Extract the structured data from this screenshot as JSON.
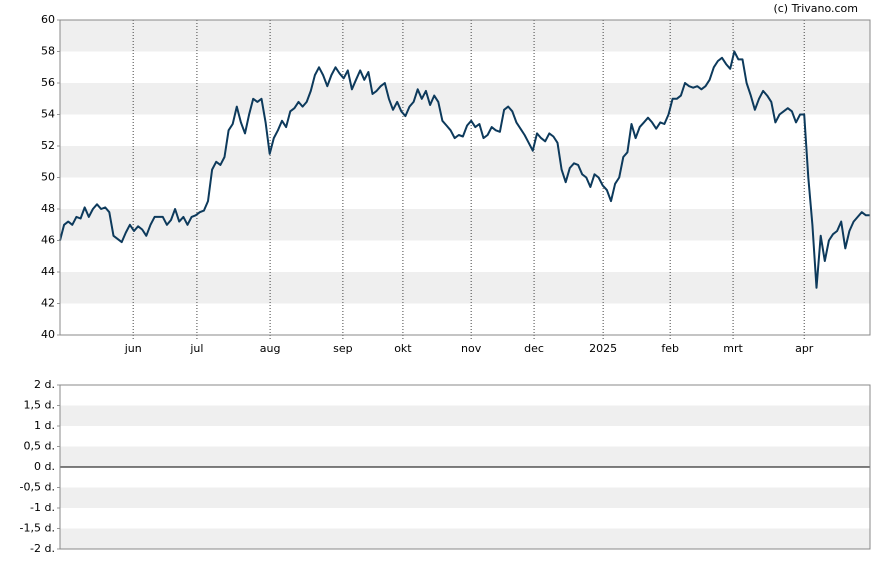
{
  "credit": "(c) Trivano.com",
  "chart_data": [
    {
      "type": "line",
      "xlim": [
        0,
        197
      ],
      "xticks": [
        {
          "value": 17.8,
          "label": "jun"
        },
        {
          "value": 33.3,
          "label": "jul"
        },
        {
          "value": 51.1,
          "label": "aug"
        },
        {
          "value": 68.8,
          "label": "sep"
        },
        {
          "value": 83.4,
          "label": "okt"
        },
        {
          "value": 100.0,
          "label": "nov"
        },
        {
          "value": 115.3,
          "label": "dec"
        },
        {
          "value": 132.1,
          "label": "2025"
        },
        {
          "value": 148.4,
          "label": "feb"
        },
        {
          "value": 163.7,
          "label": "mrt"
        },
        {
          "value": 181.0,
          "label": "apr"
        }
      ],
      "ylim": [
        40,
        60
      ],
      "yticks": [
        40,
        42,
        44,
        46,
        48,
        50,
        52,
        54,
        56,
        58,
        60
      ],
      "grid": true,
      "color": "#0d3a5c",
      "values": [
        46.0,
        47.0,
        47.2,
        47.0,
        47.5,
        47.4,
        48.1,
        47.5,
        48.0,
        48.3,
        48.0,
        48.1,
        47.8,
        46.3,
        46.1,
        45.9,
        46.5,
        47.0,
        46.6,
        46.9,
        46.7,
        46.3,
        47.0,
        47.5,
        47.5,
        47.5,
        47.0,
        47.3,
        48.0,
        47.2,
        47.5,
        47.0,
        47.5,
        47.6,
        47.8,
        47.9,
        48.5,
        50.5,
        51.0,
        50.8,
        51.3,
        53.0,
        53.4,
        54.5,
        53.5,
        52.8,
        54.0,
        55.0,
        54.8,
        55.0,
        53.5,
        51.5,
        52.5,
        53.0,
        53.6,
        53.2,
        54.2,
        54.4,
        54.8,
        54.5,
        54.8,
        55.5,
        56.5,
        57.0,
        56.5,
        55.8,
        56.5,
        57.0,
        56.6,
        56.3,
        56.8,
        55.6,
        56.2,
        56.8,
        56.2,
        56.7,
        55.3,
        55.5,
        55.8,
        56.0,
        55.0,
        54.3,
        54.8,
        54.2,
        53.9,
        54.5,
        54.8,
        55.6,
        55.0,
        55.5,
        54.6,
        55.2,
        54.8,
        53.6,
        53.3,
        53.0,
        52.5,
        52.7,
        52.6,
        53.3,
        53.6,
        53.2,
        53.4,
        52.5,
        52.7,
        53.2,
        53.0,
        52.9,
        54.3,
        54.5,
        54.2,
        53.5,
        53.1,
        52.7,
        52.2,
        51.7,
        52.8,
        52.5,
        52.3,
        52.8,
        52.6,
        52.2,
        50.5,
        49.7,
        50.6,
        50.9,
        50.8,
        50.2,
        50.0,
        49.4,
        50.2,
        50.0,
        49.5,
        49.2,
        48.5,
        49.6,
        50.0,
        51.3,
        51.6,
        53.4,
        52.5,
        53.2,
        53.5,
        53.8,
        53.5,
        53.1,
        53.5,
        53.4,
        54.0,
        55.0,
        55.0,
        55.2,
        56.0,
        55.8,
        55.7,
        55.8,
        55.6,
        55.8,
        56.2,
        57.0,
        57.4,
        57.6,
        57.2,
        56.9,
        58.0,
        57.5,
        57.5,
        56.0,
        55.2,
        54.3,
        55.0,
        55.5,
        55.2,
        54.8,
        53.5,
        54.0,
        54.2,
        54.4,
        54.2,
        53.5,
        54.0,
        54.0,
        50.0,
        47.0,
        43.0,
        46.3,
        44.7,
        46.0,
        46.4,
        46.6,
        47.2,
        45.5,
        46.6,
        47.2,
        47.5,
        47.8,
        47.6,
        47.6
      ]
    },
    {
      "type": "empty",
      "ylim": [
        -2,
        2
      ],
      "yticks": [
        {
          "value": 2,
          "label": "2 d."
        },
        {
          "value": 1.5,
          "label": "1,5 d."
        },
        {
          "value": 1,
          "label": "1 d."
        },
        {
          "value": 0.5,
          "label": "0,5 d."
        },
        {
          "value": 0,
          "label": "0 d."
        },
        {
          "value": -0.5,
          "label": "-0,5 d."
        },
        {
          "value": -1,
          "label": "-1 d."
        },
        {
          "value": -1.5,
          "label": "-1,5 d."
        },
        {
          "value": -2,
          "label": "-2 d."
        }
      ],
      "grid": true
    }
  ]
}
